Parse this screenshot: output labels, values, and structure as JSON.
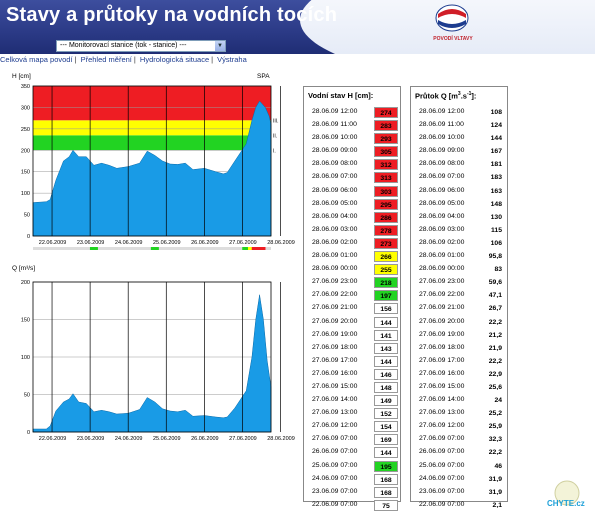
{
  "header": {
    "title": "Stavy a průtoky na vodních tocích",
    "logo_text": "POVODÍ VLTAVY"
  },
  "station_select": {
    "value": "--- Monitorovací stanice (tok - stanice) ---"
  },
  "nav": {
    "items": [
      "Celková mapa povodí",
      "Přehled měření",
      "Hydrologická situace",
      "Výstraha"
    ]
  },
  "colors": {
    "header_bg": "#2b3a86",
    "alert3": "#ee1d23",
    "alert2": "#ffff00",
    "alert1": "#22d322",
    "area": "#199be6"
  },
  "chart_data": [
    {
      "type": "area",
      "ylabel": "H [cm]",
      "ylabel_right": "SPA",
      "ylim": [
        0,
        350
      ],
      "yticks": [
        0,
        50,
        100,
        150,
        200,
        250,
        300,
        350
      ],
      "xticks": [
        "22.06.2009",
        "23.06.2009",
        "24.06.2009",
        "25.06.2009",
        "26.06.2009",
        "27.06.2009",
        "28.06.2009"
      ],
      "bands": [
        {
          "label": "I.",
          "from": 200,
          "to": 235,
          "color": "#22d322"
        },
        {
          "label": "II.",
          "from": 235,
          "to": 270,
          "color": "#ffff00"
        },
        {
          "label": "III.",
          "from": 270,
          "to": 350,
          "color": "#ee1d23"
        }
      ],
      "x": [
        0,
        0.35,
        0.45,
        0.6,
        0.8,
        0.95,
        1.05,
        1.2,
        1.4,
        1.6,
        1.8,
        2.0,
        2.2,
        2.5,
        2.8,
        3.0,
        3.2,
        3.4,
        3.6,
        3.8,
        4.0,
        4.2,
        4.5,
        4.8,
        5.0,
        5.1,
        5.3,
        5.6,
        5.75,
        5.85,
        5.95,
        6.1,
        6.2,
        6.25
      ],
      "y": [
        78,
        80,
        85,
        130,
        175,
        185,
        200,
        185,
        185,
        165,
        170,
        165,
        158,
        162,
        170,
        198,
        188,
        175,
        168,
        167,
        170,
        155,
        158,
        150,
        145,
        148,
        175,
        215,
        270,
        300,
        315,
        300,
        280,
        260
      ]
    },
    {
      "type": "area",
      "ylabel": "Q [m³/s]",
      "ylim": [
        0,
        200
      ],
      "yticks": [
        0,
        50,
        100,
        150,
        200
      ],
      "xticks": [
        "22.06.2009",
        "23.06.2009",
        "24.06.2009",
        "25.06.2009",
        "26.06.2009",
        "27.06.2009",
        "28.06.2009"
      ],
      "x": [
        0,
        0.35,
        0.45,
        0.6,
        0.8,
        0.95,
        1.05,
        1.2,
        1.4,
        1.6,
        1.8,
        2.0,
        2.2,
        2.5,
        2.8,
        3.0,
        3.2,
        3.4,
        3.6,
        3.8,
        4.0,
        4.2,
        4.5,
        4.8,
        5.0,
        5.1,
        5.3,
        5.6,
        5.75,
        5.85,
        5.95,
        6.05,
        6.15,
        6.25
      ],
      "y": [
        4,
        4,
        8,
        28,
        40,
        44,
        51,
        40,
        38,
        27,
        29,
        27,
        24,
        25,
        30,
        46,
        40,
        31,
        28,
        27,
        29,
        21,
        22,
        20,
        19,
        20,
        32,
        55,
        100,
        150,
        183,
        150,
        95,
        60
      ]
    }
  ],
  "table_h": {
    "header": "Vodní stav H [cm]:",
    "rows": [
      {
        "date": "28.06.09 12:00",
        "value": "274",
        "level": 3
      },
      {
        "date": "28.06.09 11:00",
        "value": "283",
        "level": 3
      },
      {
        "date": "28.06.09 10:00",
        "value": "293",
        "level": 3
      },
      {
        "date": "28.06.09 09:00",
        "value": "305",
        "level": 3
      },
      {
        "date": "28.06.09 08:00",
        "value": "312",
        "level": 3
      },
      {
        "date": "28.06.09 07:00",
        "value": "313",
        "level": 3
      },
      {
        "date": "28.06.09 06:00",
        "value": "303",
        "level": 3
      },
      {
        "date": "28.06.09 05:00",
        "value": "295",
        "level": 3
      },
      {
        "date": "28.06.09 04:00",
        "value": "286",
        "level": 3
      },
      {
        "date": "28.06.09 03:00",
        "value": "278",
        "level": 3
      },
      {
        "date": "28.06.09 02:00",
        "value": "273",
        "level": 3
      },
      {
        "date": "28.06.09 01:00",
        "value": "266",
        "level": 2
      },
      {
        "date": "28.06.09 00:00",
        "value": "255",
        "level": 2
      },
      {
        "date": "27.06.09 23:00",
        "value": "218",
        "level": 1
      },
      {
        "date": "27.06.09 22:00",
        "value": "197",
        "level": 1
      },
      {
        "date": "27.06.09 21:00",
        "value": "156",
        "level": 0
      },
      {
        "date": "27.06.09 20:00",
        "value": "144",
        "level": 0
      },
      {
        "date": "27.06.09 19:00",
        "value": "141",
        "level": 0
      },
      {
        "date": "27.06.09 18:00",
        "value": "143",
        "level": 0
      },
      {
        "date": "27.06.09 17:00",
        "value": "144",
        "level": 0
      },
      {
        "date": "27.06.09 16:00",
        "value": "146",
        "level": 0
      },
      {
        "date": "27.06.09 15:00",
        "value": "148",
        "level": 0
      },
      {
        "date": "27.06.09 14:00",
        "value": "149",
        "level": 0
      },
      {
        "date": "27.06.09 13:00",
        "value": "152",
        "level": 0
      },
      {
        "date": "27.06.09 12:00",
        "value": "154",
        "level": 0
      },
      {
        "date": "27.06.09 07:00",
        "value": "169",
        "level": 0
      },
      {
        "date": "26.06.09 07:00",
        "value": "144",
        "level": 0
      },
      {
        "date": "25.06.09 07:00",
        "value": "195",
        "level": 1
      },
      {
        "date": "24.06.09 07:00",
        "value": "168",
        "level": 0
      },
      {
        "date": "23.06.09 07:00",
        "value": "168",
        "level": 0
      },
      {
        "date": "22.06.09 07:00",
        "value": "75",
        "level": 0
      }
    ]
  },
  "table_q": {
    "header": "Průtok Q [m",
    "header_sup": "3",
    "header_mid": ".s",
    "header_sup2": "-1",
    "header_end": "]:",
    "rows": [
      {
        "date": "28.06.09 12:00",
        "value": "108"
      },
      {
        "date": "28.06.09 11:00",
        "value": "124"
      },
      {
        "date": "28.06.09 10:00",
        "value": "144"
      },
      {
        "date": "28.06.09 09:00",
        "value": "167"
      },
      {
        "date": "28.06.09 08:00",
        "value": "181"
      },
      {
        "date": "28.06.09 07:00",
        "value": "183"
      },
      {
        "date": "28.06.09 06:00",
        "value": "163"
      },
      {
        "date": "28.06.09 05:00",
        "value": "148"
      },
      {
        "date": "28.06.09 04:00",
        "value": "130"
      },
      {
        "date": "28.06.09 03:00",
        "value": "115"
      },
      {
        "date": "28.06.09 02:00",
        "value": "106"
      },
      {
        "date": "28.06.09 01:00",
        "value": "95,8"
      },
      {
        "date": "28.06.09 00:00",
        "value": "83"
      },
      {
        "date": "27.06.09 23:00",
        "value": "59,6"
      },
      {
        "date": "27.06.09 22:00",
        "value": "47,1"
      },
      {
        "date": "27.06.09 21:00",
        "value": "26,7"
      },
      {
        "date": "27.06.09 20:00",
        "value": "22,2"
      },
      {
        "date": "27.06.09 19:00",
        "value": "21,2"
      },
      {
        "date": "27.06.09 18:00",
        "value": "21,9"
      },
      {
        "date": "27.06.09 17:00",
        "value": "22,2"
      },
      {
        "date": "27.06.09 16:00",
        "value": "22,9"
      },
      {
        "date": "27.06.09 15:00",
        "value": "25,6"
      },
      {
        "date": "27.06.09 14:00",
        "value": "24"
      },
      {
        "date": "27.06.09 13:00",
        "value": "25,2"
      },
      {
        "date": "27.06.09 12:00",
        "value": "25,9"
      },
      {
        "date": "27.06.09 07:00",
        "value": "32,3"
      },
      {
        "date": "26.06.09 07:00",
        "value": "22,2"
      },
      {
        "date": "25.06.09 07:00",
        "value": "46"
      },
      {
        "date": "24.06.09 07:00",
        "value": "31,9"
      },
      {
        "date": "23.06.09 07:00",
        "value": "31,9"
      },
      {
        "date": "22.06.09 07:00",
        "value": "2,1"
      }
    ]
  },
  "watermark": {
    "text": "CHYTE.cz"
  }
}
